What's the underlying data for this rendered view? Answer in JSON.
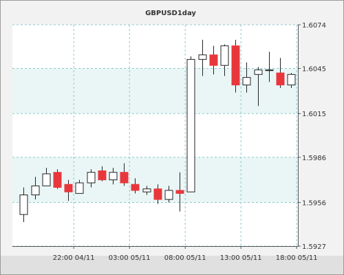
{
  "chart_data": {
    "type": "candlestick",
    "title": "GBPUSD1day",
    "ylim": [
      1.5927,
      1.6074
    ],
    "y_ticks": [
      "1.6074",
      "1.6045",
      "1.6015",
      "1.5986",
      "1.5956",
      "1.5927"
    ],
    "x_ticks": [
      {
        "label": "22:00 04/11",
        "bar": 4.5
      },
      {
        "label": "03:00 05/11",
        "bar": 9.5
      },
      {
        "label": "08:00 05/11",
        "bar": 14.5
      },
      {
        "label": "13:00 05/11",
        "bar": 19.5
      },
      {
        "label": "18:00 05/11",
        "bar": 24.5
      }
    ],
    "candles": [
      {
        "open": 1.5948,
        "high": 1.5966,
        "low": 1.5943,
        "close": 1.5961
      },
      {
        "open": 1.5961,
        "high": 1.5973,
        "low": 1.5958,
        "close": 1.5967
      },
      {
        "open": 1.5967,
        "high": 1.5979,
        "low": 1.5967,
        "close": 1.5975
      },
      {
        "open": 1.5976,
        "high": 1.5978,
        "low": 1.5965,
        "close": 1.5966
      },
      {
        "open": 1.5968,
        "high": 1.5971,
        "low": 1.5957,
        "close": 1.5963
      },
      {
        "open": 1.5962,
        "high": 1.5971,
        "low": 1.5962,
        "close": 1.5969
      },
      {
        "open": 1.5969,
        "high": 1.5978,
        "low": 1.5966,
        "close": 1.5976
      },
      {
        "open": 1.5977,
        "high": 1.598,
        "low": 1.597,
        "close": 1.5971
      },
      {
        "open": 1.5971,
        "high": 1.5979,
        "low": 1.5968,
        "close": 1.5976
      },
      {
        "open": 1.5976,
        "high": 1.5982,
        "low": 1.5967,
        "close": 1.5969
      },
      {
        "open": 1.5968,
        "high": 1.5972,
        "low": 1.5962,
        "close": 1.5964
      },
      {
        "open": 1.5963,
        "high": 1.5967,
        "low": 1.5961,
        "close": 1.5965
      },
      {
        "open": 1.5965,
        "high": 1.5968,
        "low": 1.5955,
        "close": 1.5958
      },
      {
        "open": 1.5958,
        "high": 1.5967,
        "low": 1.5956,
        "close": 1.5964
      },
      {
        "open": 1.5964,
        "high": 1.5976,
        "low": 1.595,
        "close": 1.5962
      },
      {
        "open": 1.5963,
        "high": 1.6053,
        "low": 1.5963,
        "close": 1.6051
      },
      {
        "open": 1.6051,
        "high": 1.6064,
        "low": 1.604,
        "close": 1.6054
      },
      {
        "open": 1.6054,
        "high": 1.606,
        "low": 1.6041,
        "close": 1.6047
      },
      {
        "open": 1.6047,
        "high": 1.6061,
        "low": 1.604,
        "close": 1.606
      },
      {
        "open": 1.606,
        "high": 1.6064,
        "low": 1.6029,
        "close": 1.6034
      },
      {
        "open": 1.6034,
        "high": 1.6049,
        "low": 1.6029,
        "close": 1.6039
      },
      {
        "open": 1.6041,
        "high": 1.6046,
        "low": 1.602,
        "close": 1.6044
      },
      {
        "open": 1.6044,
        "high": 1.6056,
        "low": 1.6036,
        "close": 1.6044
      },
      {
        "open": 1.6042,
        "high": 1.6052,
        "low": 1.6032,
        "close": 1.6034
      },
      {
        "open": 1.6034,
        "high": 1.6042,
        "low": 1.6032,
        "close": 1.6041
      }
    ],
    "colors": {
      "up": "#ffffff",
      "down": "#e8373c",
      "grid": "#8cc8cc",
      "axis": "#555555",
      "wick": "#222222"
    },
    "grid": true
  }
}
